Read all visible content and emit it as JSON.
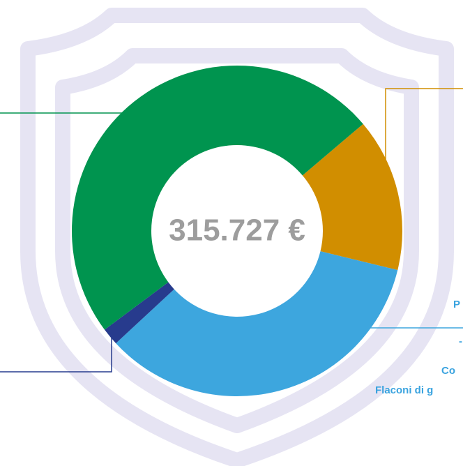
{
  "chart_data": {
    "type": "donut",
    "total_label": "315.727 €",
    "values": [
      15,
      34.3,
      1.7,
      49
    ],
    "colors": [
      "#d18e00",
      "#3da6de",
      "#273b8d",
      "#00944f"
    ],
    "annotations": [
      "P",
      "-",
      "Co",
      "Flaconi di g"
    ]
  }
}
